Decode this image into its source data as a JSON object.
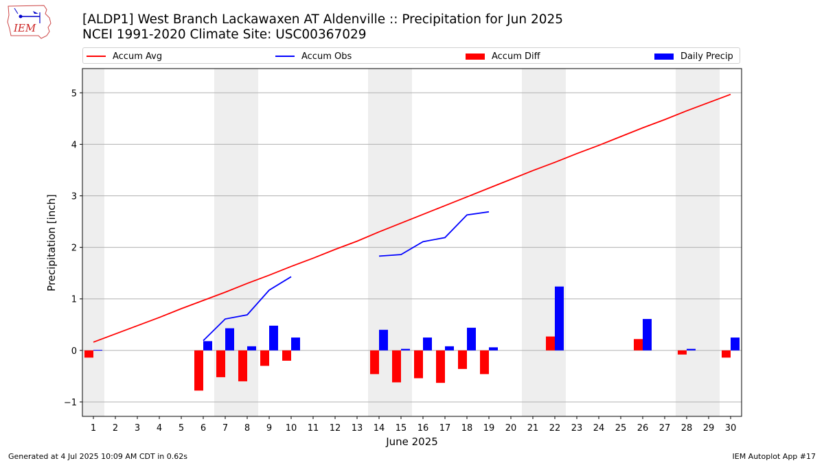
{
  "header": {
    "title_line1": "[ALDP1] West Branch Lackawaxen  AT Aldenville :: Precipitation for Jun 2025",
    "title_line2": "NCEI 1991-2020 Climate Site: USC00367029",
    "logo_text": "IEM"
  },
  "legend": [
    {
      "label": "Accum Avg",
      "kind": "line",
      "color": "#ff0000"
    },
    {
      "label": "Accum Obs",
      "kind": "line",
      "color": "#0000ff"
    },
    {
      "label": "Accum Diff",
      "kind": "box",
      "color": "#ff0000"
    },
    {
      "label": "Daily Precip",
      "kind": "box",
      "color": "#0000ff"
    }
  ],
  "footer": {
    "left": "Generated at 4 Jul 2025 10:09 AM CDT in 0.62s",
    "right": "IEM Autoplot App #17"
  },
  "chart_data": {
    "type": "bar",
    "xlabel": "June 2025",
    "ylabel": "Precipitation [inch]",
    "xlim": [
      0.5,
      30.5
    ],
    "ylim": [
      -1.28,
      5.47
    ],
    "yticks": [
      -1,
      0,
      1,
      2,
      3,
      4,
      5
    ],
    "ytick_labels": [
      "−1",
      "0",
      "1",
      "2",
      "3",
      "4",
      "5"
    ],
    "grid": "horizontal",
    "legend_position": "top",
    "days": [
      1,
      2,
      3,
      4,
      5,
      6,
      7,
      8,
      9,
      10,
      11,
      12,
      13,
      14,
      15,
      16,
      17,
      18,
      19,
      20,
      21,
      22,
      23,
      24,
      25,
      26,
      27,
      28,
      29,
      30
    ],
    "weekend_shading": [
      [
        0.5,
        1.5
      ],
      [
        6.5,
        8.5
      ],
      [
        13.5,
        15.5
      ],
      [
        20.5,
        22.5
      ],
      [
        27.5,
        29.5
      ]
    ],
    "accum_avg": [
      0.16,
      0.32,
      0.48,
      0.64,
      0.81,
      0.97,
      1.13,
      1.3,
      1.46,
      1.63,
      1.79,
      1.96,
      2.12,
      2.3,
      2.47,
      2.64,
      2.81,
      2.98,
      3.15,
      3.32,
      3.49,
      3.65,
      3.82,
      3.98,
      4.15,
      4.32,
      4.48,
      4.65,
      4.81,
      4.97
    ],
    "accum_obs": [
      null,
      null,
      null,
      null,
      null,
      0.19,
      0.61,
      0.69,
      1.17,
      1.43,
      null,
      null,
      null,
      1.83,
      1.86,
      2.11,
      2.19,
      2.63,
      2.69,
      null,
      null,
      null,
      null,
      null,
      null,
      null,
      null,
      null,
      null,
      null
    ],
    "accum_diff": [
      -0.14,
      null,
      null,
      null,
      null,
      -0.78,
      -0.52,
      -0.6,
      -0.3,
      -0.2,
      null,
      null,
      null,
      -0.46,
      -0.62,
      -0.54,
      -0.63,
      -0.36,
      -0.46,
      null,
      null,
      0.27,
      null,
      null,
      null,
      0.22,
      null,
      -0.08,
      null,
      -0.14
    ],
    "daily_precip": [
      0.01,
      null,
      null,
      null,
      null,
      0.18,
      0.43,
      0.08,
      0.48,
      0.25,
      null,
      null,
      null,
      0.4,
      0.03,
      0.25,
      0.08,
      0.44,
      0.06,
      null,
      null,
      1.24,
      null,
      null,
      null,
      0.61,
      null,
      0.03,
      null,
      0.25
    ],
    "series_colors": {
      "accum_avg": "#ff0000",
      "accum_obs": "#0000ff",
      "accum_diff": "#ff0000",
      "daily_precip": "#0000ff"
    }
  }
}
